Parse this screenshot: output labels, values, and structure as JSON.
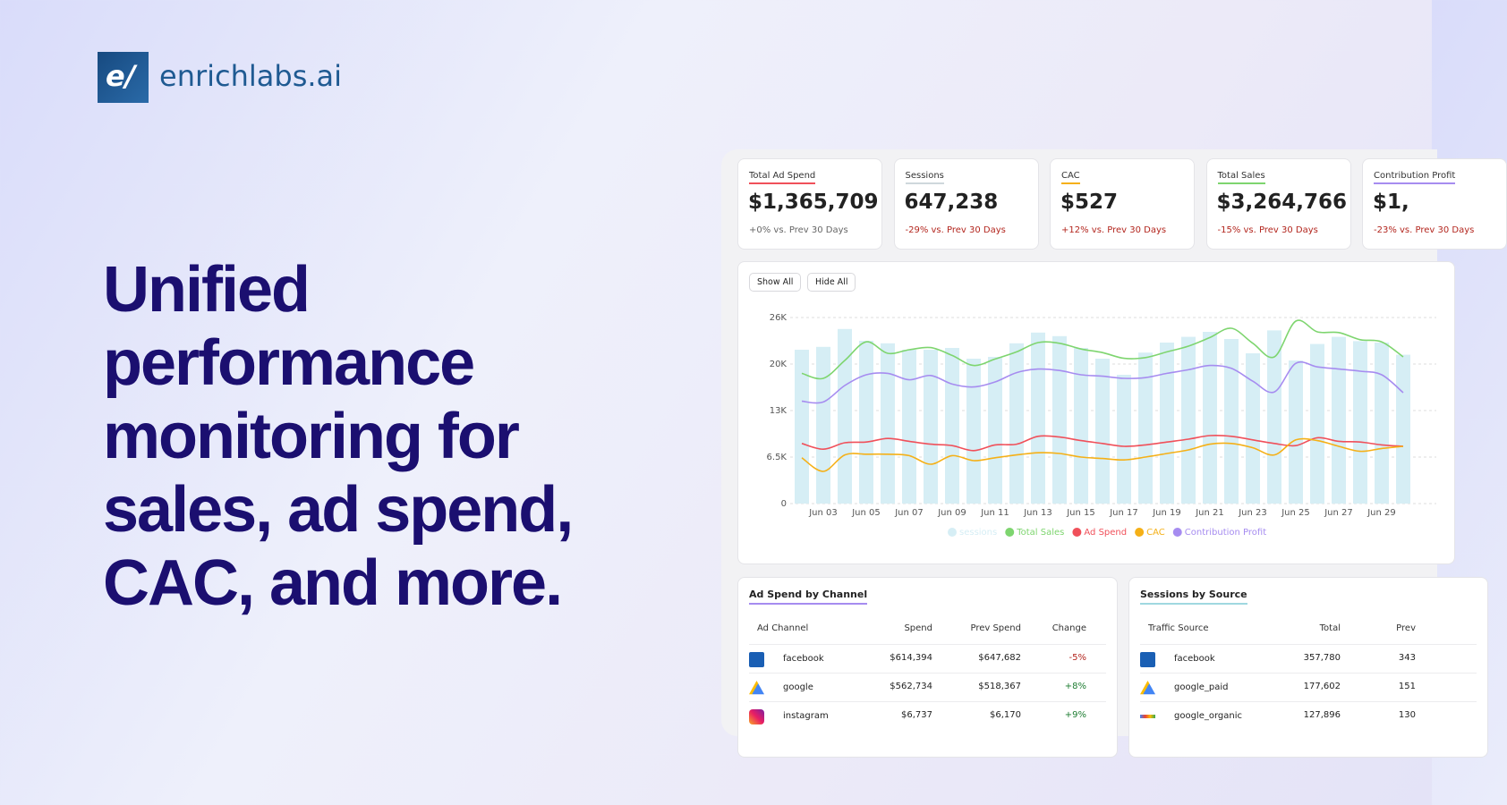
{
  "logo": {
    "mark": "e/",
    "name": "enrichlabs.ai"
  },
  "headline": [
    "Unified",
    "performance",
    "monitoring for",
    "sales, ad spend,",
    "CAC, and more."
  ],
  "kpis": [
    {
      "label": "Total Ad Spend",
      "value": "$1,365,709",
      "change": "+0% vs. Prev 30 Days",
      "color": "#f0505a",
      "change_color": "#666666"
    },
    {
      "label": "Sessions",
      "value": "647,238",
      "change": "-29% vs. Prev 30 Days",
      "color": "#cfd8dc",
      "change_color": "#b3261e"
    },
    {
      "label": "CAC",
      "value": "$527",
      "change": "+12% vs. Prev 30 Days",
      "color": "#f5b017",
      "change_color": "#b3261e"
    },
    {
      "label": "Total Sales",
      "value": "$3,264,766",
      "change": "-15% vs. Prev 30 Days",
      "color": "#7ed56f",
      "change_color": "#b3261e"
    },
    {
      "label": "Contribution Profit",
      "value": "$1,",
      "change": "-23% vs. Prev 30 Days",
      "color": "#a68cf0",
      "change_color": "#b3261e"
    }
  ],
  "buttons": [
    "Show All",
    "Hide All"
  ],
  "chart_data": {
    "type": "combo",
    "categories": [
      null,
      "Jun 03",
      null,
      "Jun 05",
      null,
      "Jun 07",
      null,
      "Jun 09",
      null,
      "Jun 11",
      null,
      "Jun 13",
      null,
      "Jun 15",
      null,
      "Jun 17",
      null,
      "Jun 19",
      null,
      "Jun 21",
      null,
      "Jun 23",
      null,
      "Jun 25",
      null,
      "Jun 27",
      null,
      "Jun 29",
      null
    ],
    "ylim": [
      0,
      26000
    ],
    "yticks": [
      0,
      {
        "value": 6500,
        "label": "6.5K"
      },
      {
        "value": 13000,
        "label": "13K"
      },
      {
        "value": 19500,
        "label": "20K"
      },
      {
        "value": 26000,
        "label": "26K"
      }
    ],
    "grid": true,
    "series": [
      {
        "name": "sessions",
        "type": "bar",
        "color": "#d6eef5",
        "values": [
          21500,
          21900,
          24400,
          22750,
          22400,
          21500,
          21500,
          21750,
          20250,
          20500,
          22400,
          23900,
          23400,
          21750,
          20250,
          18000,
          21100,
          22500,
          23300,
          24000,
          23000,
          21000,
          24200,
          20000,
          22300,
          23300,
          22700,
          22500,
          20800
        ]
      },
      {
        "name": "Total Sales",
        "type": "line",
        "color": "#7ed56f",
        "values": [
          18200,
          17500,
          20000,
          22600,
          21000,
          21500,
          21800,
          20700,
          19300,
          20200,
          21200,
          22500,
          22400,
          21600,
          21100,
          20300,
          20400,
          21200,
          22000,
          23200,
          24500,
          22400,
          20500,
          25500,
          24000,
          23900,
          22900,
          22600,
          20500
        ]
      },
      {
        "name": "Ad Spend",
        "type": "line",
        "color": "#f0505a",
        "values": [
          8400,
          7600,
          8500,
          8600,
          9100,
          8700,
          8300,
          8100,
          7400,
          8200,
          8300,
          9400,
          9300,
          8800,
          8400,
          8000,
          8200,
          8600,
          9000,
          9500,
          9400,
          8900,
          8400,
          8100,
          9200,
          8700,
          8600,
          8200,
          8000
        ]
      },
      {
        "name": "CAC",
        "type": "line",
        "color": "#f5b017",
        "values": [
          6400,
          4500,
          6800,
          6900,
          6900,
          6700,
          5500,
          6700,
          6000,
          6400,
          6800,
          7100,
          7000,
          6500,
          6300,
          6100,
          6500,
          7000,
          7500,
          8300,
          8400,
          7800,
          6800,
          8900,
          8800,
          8000,
          7300,
          7700,
          8000
        ]
      },
      {
        "name": "Contribution Profit",
        "type": "line",
        "color": "#a68cf0",
        "values": [
          14300,
          14200,
          16500,
          18000,
          18200,
          17300,
          17900,
          16700,
          16300,
          17000,
          18300,
          18800,
          18600,
          18000,
          17800,
          17500,
          17600,
          18200,
          18700,
          19300,
          18900,
          17100,
          15600,
          19600,
          19100,
          18800,
          18500,
          18000,
          15500
        ]
      }
    ]
  },
  "tables": [
    {
      "title": "Ad Spend by Channel",
      "color": "#a68cf0",
      "icons": [
        "facebook",
        "google",
        "instagram"
      ],
      "headers": [
        "Ad Channel",
        "Spend",
        "Prev Spend",
        "Change"
      ],
      "rows": [
        [
          "facebook",
          "$614,394",
          "$647,682",
          "-5%"
        ],
        [
          "google",
          "$562,734",
          "$518,367",
          "+8%"
        ],
        [
          "instagram",
          "$6,737",
          "$6,170",
          "+9%"
        ]
      ]
    },
    {
      "title": "Sessions by Source",
      "color": "#9fd8e0",
      "icons": [
        "facebook",
        "google",
        "google-small"
      ],
      "headers": [
        "Traffic Source",
        "Total",
        "Prev"
      ],
      "rows": [
        [
          "facebook",
          "357,780",
          "343"
        ],
        [
          "google_paid",
          "177,602",
          "151"
        ],
        [
          "google_organic",
          "127,896",
          "130"
        ]
      ]
    }
  ]
}
